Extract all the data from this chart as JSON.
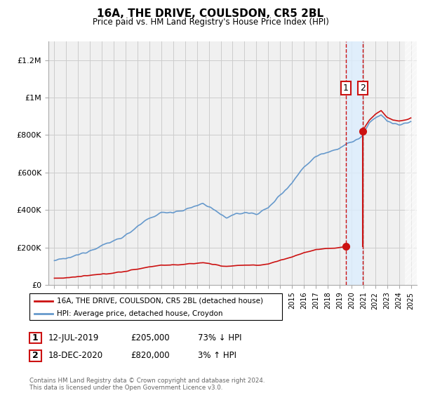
{
  "title": "16A, THE DRIVE, COULSDON, CR5 2BL",
  "subtitle": "Price paid vs. HM Land Registry's House Price Index (HPI)",
  "ylabel_ticks": [
    "£0",
    "£200K",
    "£400K",
    "£600K",
    "£800K",
    "£1M",
    "£1.2M"
  ],
  "ytick_vals": [
    0,
    200000,
    400000,
    600000,
    800000,
    1000000,
    1200000
  ],
  "ylim": [
    0,
    1300000
  ],
  "xlim_start": 1994.5,
  "xlim_end": 2025.5,
  "hpi_color": "#6699cc",
  "price_color": "#cc1111",
  "legend_label_price": "16A, THE DRIVE, COULSDON, CR5 2BL (detached house)",
  "legend_label_hpi": "HPI: Average price, detached house, Croydon",
  "sale1_year": 2019.53,
  "sale1_price": 205000,
  "sale2_year": 2020.96,
  "sale2_price": 820000,
  "sale1_date": "12-JUL-2019",
  "sale1_amount": "£205,000",
  "sale1_hpi": "73% ↓ HPI",
  "sale2_date": "18-DEC-2020",
  "sale2_amount": "£820,000",
  "sale2_hpi": "3% ↑ HPI",
  "footnote": "Contains HM Land Registry data © Crown copyright and database right 2024.\nThis data is licensed under the Open Government Licence v3.0.",
  "bg_color": "#ffffff",
  "plot_bg_color": "#f0f0f0",
  "grid_color": "#cccccc",
  "shade_color": "#ddeeff",
  "hatch_color": "#cccccc"
}
